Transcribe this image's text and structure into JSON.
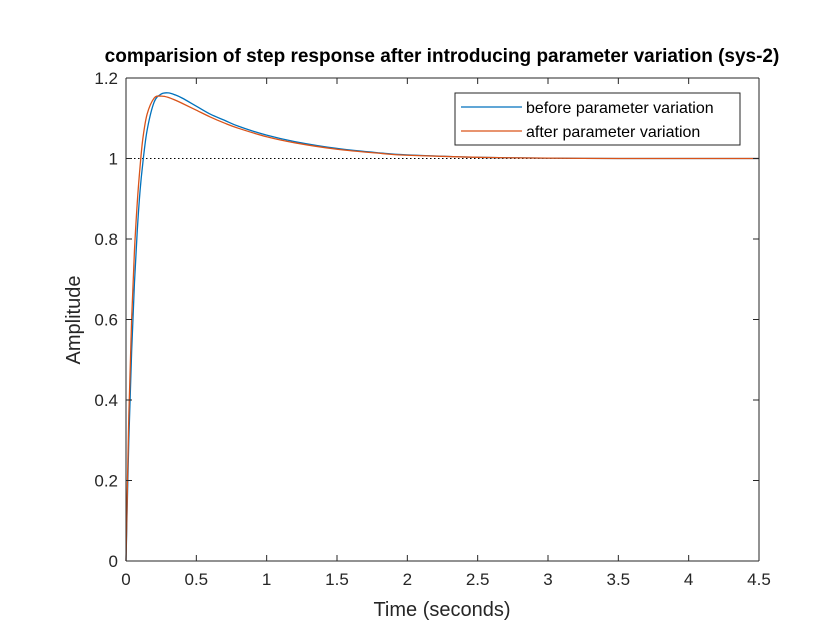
{
  "chart_data": {
    "type": "line",
    "title": "comparision of step response after introducing parameter variation (sys-2)",
    "xlabel": "Time (seconds)",
    "ylabel": "Amplitude",
    "xlim": [
      0,
      4.5
    ],
    "ylim": [
      0,
      1.2
    ],
    "xticks": [
      "0",
      "0.5",
      "1",
      "1.5",
      "2",
      "2.5",
      "3",
      "3.5",
      "4",
      "4.5"
    ],
    "yticks": [
      "0",
      "0.2",
      "0.4",
      "0.6",
      "0.8",
      "1",
      "1.2"
    ],
    "grid": false,
    "legend_position": "top-right",
    "reference_line": {
      "y": 1,
      "style": "dotted"
    },
    "series": [
      {
        "name": "before parameter variation",
        "color": "#0072BD",
        "x": [
          0,
          0.02,
          0.04,
          0.06,
          0.08,
          0.1,
          0.12,
          0.15,
          0.2,
          0.25,
          0.3,
          0.35,
          0.4,
          0.5,
          0.6,
          0.7,
          0.8,
          1.0,
          1.2,
          1.5,
          1.8,
          2.0,
          2.5,
          3.0,
          3.5,
          4.0,
          4.5
        ],
        "y": [
          0,
          0.3,
          0.52,
          0.69,
          0.82,
          0.92,
          0.99,
          1.07,
          1.14,
          1.16,
          1.163,
          1.158,
          1.15,
          1.13,
          1.11,
          1.095,
          1.08,
          1.058,
          1.042,
          1.025,
          1.014,
          1.009,
          1.003,
          1.001,
          1.0,
          1.0,
          1.0
        ]
      },
      {
        "name": "after parameter variation",
        "color": "#D95319",
        "x": [
          0,
          0.02,
          0.04,
          0.06,
          0.08,
          0.1,
          0.12,
          0.15,
          0.2,
          0.25,
          0.3,
          0.35,
          0.4,
          0.5,
          0.6,
          0.7,
          0.8,
          1.0,
          1.2,
          1.5,
          1.8,
          2.0,
          2.5,
          3.0,
          3.5,
          4.0,
          4.5
        ],
        "y": [
          0,
          0.36,
          0.6,
          0.77,
          0.89,
          0.98,
          1.05,
          1.11,
          1.15,
          1.155,
          1.152,
          1.145,
          1.137,
          1.12,
          1.103,
          1.088,
          1.075,
          1.054,
          1.039,
          1.023,
          1.013,
          1.008,
          1.003,
          1.001,
          1.0,
          1.0,
          1.0
        ]
      }
    ]
  }
}
